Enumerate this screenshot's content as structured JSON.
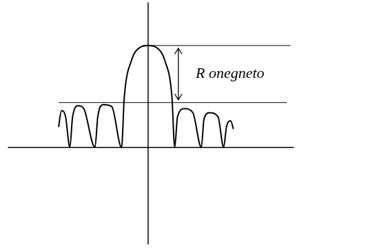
{
  "chart_data": {
    "type": "line",
    "x": [
      -3.2,
      -3.1,
      -2.95,
      -2.8,
      -2.7,
      -2.5,
      -2.3,
      -1.9,
      -1.8,
      -1.6,
      -1.3,
      -0.95,
      -0.85,
      -0.6,
      -0.3,
      0,
      0.3,
      0.6,
      0.85,
      0.95,
      1.05,
      1.3,
      1.6,
      1.9,
      2.0,
      2.2,
      2.5,
      2.7,
      2.8,
      2.95,
      3.05
    ],
    "values": [
      0.2,
      0.36,
      0.3,
      0,
      0.3,
      0.41,
      0.38,
      0,
      0.3,
      0.42,
      0.4,
      0,
      0.5,
      0.85,
      0.98,
      1,
      0.98,
      0.85,
      0.5,
      0,
      0.3,
      0.38,
      0.34,
      0,
      0.28,
      0.34,
      0.3,
      0,
      0.2,
      0.26,
      0.18
    ],
    "color": "#000000",
    "xlim": [
      -5,
      5.2
    ],
    "ylim": [
      -0.95,
      1.42
    ],
    "grid": false,
    "tick_labels": false,
    "reference_lines": [
      {
        "y": 1.0,
        "from": -0.18,
        "to": 5.08
      },
      {
        "y": 0.44,
        "from": -3.18,
        "to": 4.95
      }
    ],
    "arrow": {
      "x": 1.08,
      "from": 0.44,
      "to": 1.0
    },
    "annotation": {
      "text": "R onegneto",
      "x": 1.7,
      "y": 0.72
    }
  }
}
